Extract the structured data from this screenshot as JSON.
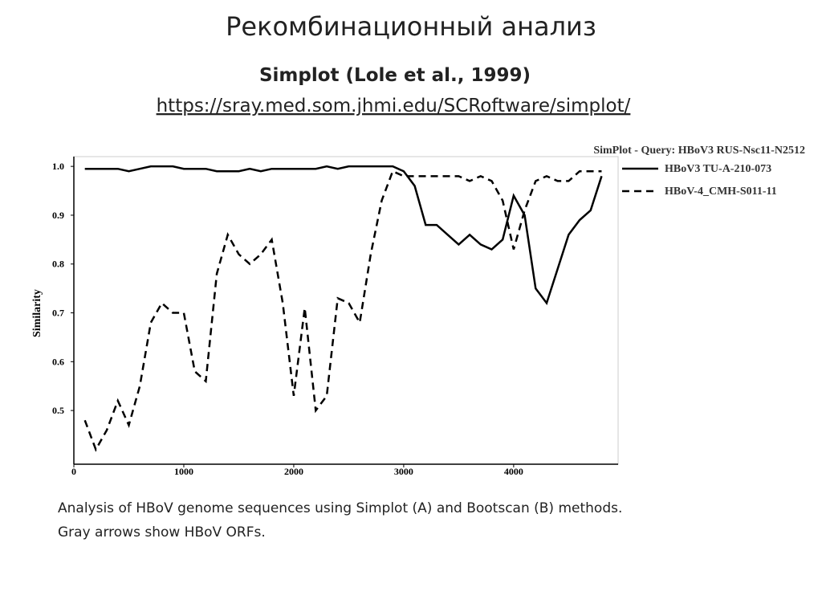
{
  "slide": {
    "title": "Рекомбинационный анализ",
    "subtitle": "Simplot (Lole et al., 1999)",
    "link": "https://sray.med.som.jhmi.edu/SCRoftware/simplot/",
    "caption": [
      "Analysis of HBoV genome sequences using Simplot (A) and Bootscan (B) methods.",
      "Gray arrows show HBoV ORFs."
    ]
  },
  "chart_data": {
    "type": "line",
    "legend_title": "SimPlot - Query: HBoV3 RUS-Nsc11-N2512",
    "y_label": "Similarity",
    "legend": "upper right",
    "x": [
      100,
      200,
      300,
      400,
      500,
      600,
      700,
      800,
      900,
      1000,
      1100,
      1200,
      1300,
      1400,
      1500,
      1600,
      1700,
      1800,
      1900,
      2000,
      2100,
      2200,
      2300,
      2400,
      2500,
      2600,
      2700,
      2800,
      2900,
      3000,
      3100,
      3200,
      3300,
      3400,
      3500,
      3600,
      3700,
      3800,
      3900,
      4000,
      4100,
      4200,
      4300,
      4400,
      4500,
      4600,
      4700,
      4800
    ],
    "series": [
      {
        "name": "HBoV3 TU-A-210-073",
        "color": "#000000",
        "dash": "solid",
        "values": [
          0.995,
          0.995,
          0.995,
          0.995,
          0.99,
          0.995,
          1.0,
          1.0,
          1.0,
          0.995,
          0.995,
          0.995,
          0.99,
          0.99,
          0.99,
          0.995,
          0.99,
          0.995,
          0.995,
          0.995,
          0.995,
          0.995,
          1.0,
          0.995,
          1.0,
          1.0,
          1.0,
          1.0,
          1.0,
          0.99,
          0.96,
          0.88,
          0.88,
          0.86,
          0.84,
          0.86,
          0.84,
          0.83,
          0.85,
          0.94,
          0.9,
          0.75,
          0.72,
          0.79,
          0.86,
          0.89,
          0.91,
          0.98
        ]
      },
      {
        "name": "HBoV-4_CMH-S011-11",
        "color": "#000000",
        "dash": "dashed",
        "values": [
          0.48,
          0.42,
          0.46,
          0.52,
          0.47,
          0.55,
          0.68,
          0.72,
          0.7,
          0.7,
          0.58,
          0.56,
          0.78,
          0.86,
          0.82,
          0.8,
          0.82,
          0.85,
          0.72,
          0.53,
          0.71,
          0.5,
          0.53,
          0.73,
          0.72,
          0.68,
          0.82,
          0.93,
          0.99,
          0.98,
          0.98,
          0.98,
          0.98,
          0.98,
          0.98,
          0.97,
          0.98,
          0.97,
          0.93,
          0.83,
          0.91,
          0.97,
          0.98,
          0.97,
          0.97,
          0.99,
          0.99,
          0.99
        ]
      }
    ],
    "xlim": [
      0,
      4950
    ],
    "ylim": [
      0.39,
      1.02
    ],
    "xticks": [
      0,
      1000,
      2000,
      3000,
      4000
    ],
    "yticks": [
      {
        "value": 1,
        "label": "1.0"
      },
      0.9,
      0.8,
      0.7,
      0.6,
      0.5
    ]
  }
}
